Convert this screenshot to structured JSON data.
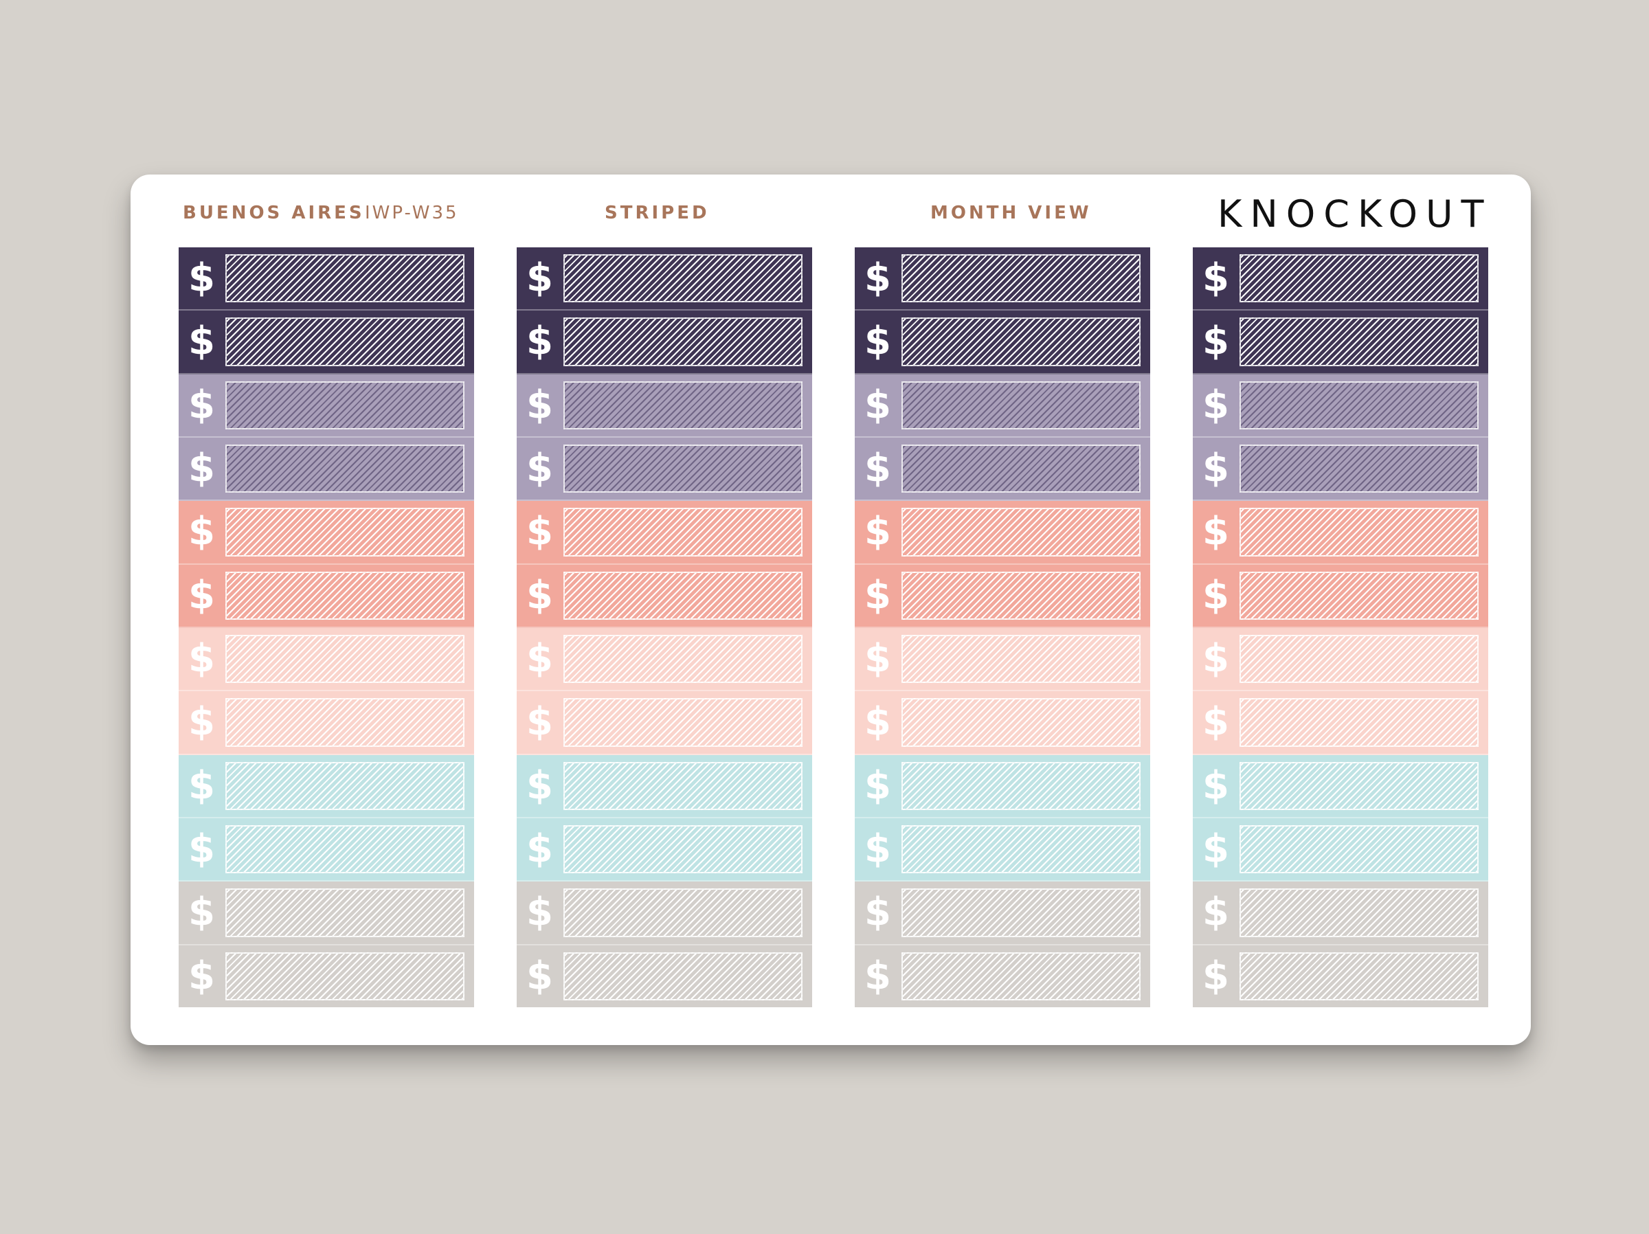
{
  "header": {
    "theme_label": "BUENOS AIRES",
    "code_label": "IWP-W35",
    "style_label": "STRIPED",
    "view_label": "MONTH VIEW",
    "brand": "KNOCKOUT"
  },
  "columns": 4,
  "sticker_symbol": "$",
  "stickers": [
    {
      "color": "#3f3554",
      "stripe": "#ffffff"
    },
    {
      "color": "#3f3554",
      "stripe": "#ffffff"
    },
    {
      "color": "#a99fb9",
      "stripe": "#6f6485"
    },
    {
      "color": "#a99fb9",
      "stripe": "#6f6485"
    },
    {
      "color": "#f2a89c",
      "stripe": "#ffffff"
    },
    {
      "color": "#f2a89c",
      "stripe": "#ffffff"
    },
    {
      "color": "#fad4cc",
      "stripe": "#ffffff"
    },
    {
      "color": "#fad4cc",
      "stripe": "#ffffff"
    },
    {
      "color": "#bfe3e4",
      "stripe": "#ffffff"
    },
    {
      "color": "#bfe3e4",
      "stripe": "#ffffff"
    },
    {
      "color": "#d3cfcb",
      "stripe": "#ffffff"
    },
    {
      "color": "#d3cfcb",
      "stripe": "#ffffff"
    }
  ]
}
